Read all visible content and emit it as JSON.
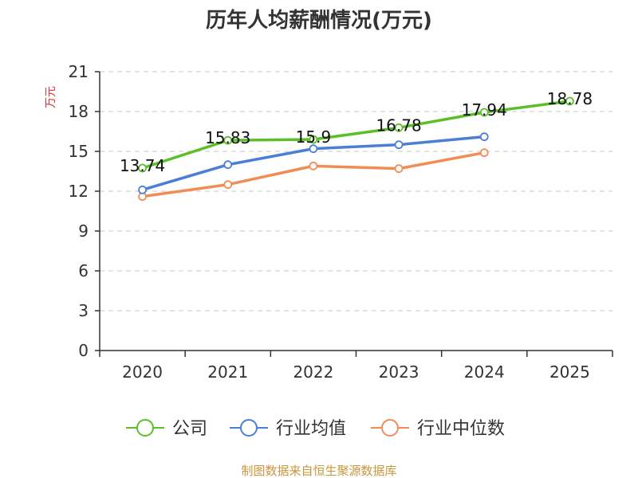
{
  "chart_data": {
    "type": "line",
    "title": "历年人均薪酬情况(万元)",
    "ylabel": "万元",
    "xlabel": "",
    "categories": [
      "2020",
      "2021",
      "2022",
      "2023",
      "2024",
      "2025"
    ],
    "ylim": [
      0,
      21
    ],
    "yticks": [
      0,
      3,
      6,
      9,
      12,
      15,
      18,
      21
    ],
    "grid": true,
    "legend_position": "bottom",
    "series": [
      {
        "name": "公司",
        "color": "#5cbf2a",
        "values": [
          13.74,
          15.83,
          15.9,
          16.78,
          17.94,
          18.78
        ],
        "data_labels": [
          "13.74",
          "15.83",
          "15.9",
          "16.78",
          "17.94",
          "18.78"
        ]
      },
      {
        "name": "行业均值",
        "color": "#4a7fd4",
        "values": [
          12.1,
          14.0,
          15.2,
          15.5,
          16.1,
          null
        ]
      },
      {
        "name": "行业中位数",
        "color": "#f28c55",
        "values": [
          11.6,
          12.5,
          13.9,
          13.7,
          14.9,
          null
        ]
      }
    ]
  },
  "footer": {
    "source": "制图数据来自恒生聚源数据库"
  }
}
